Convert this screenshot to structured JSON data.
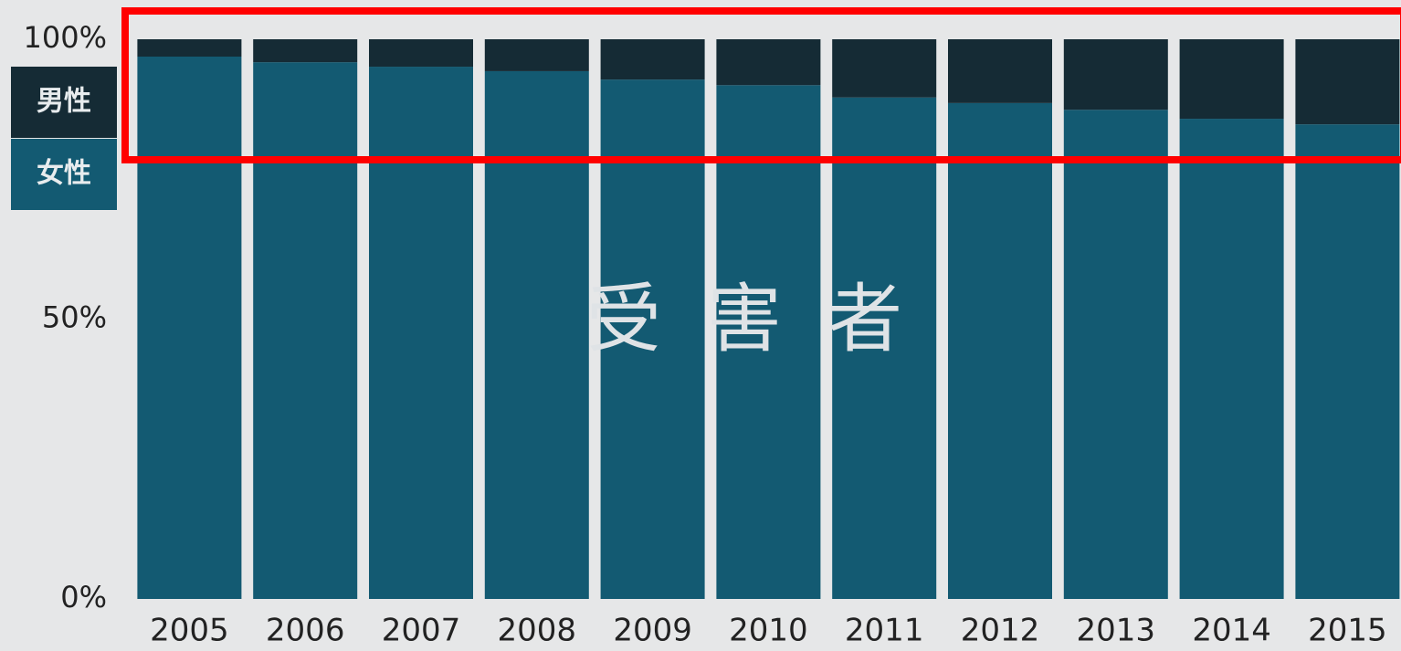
{
  "chart_data": {
    "type": "stacked_bar",
    "categories": [
      "2005",
      "2006",
      "2007",
      "2008",
      "2009",
      "2010",
      "2011",
      "2012",
      "2013",
      "2014",
      "2015"
    ],
    "series": [
      {
        "name": "女性",
        "color": "#135a72",
        "values": [
          96.9,
          95.9,
          95.1,
          94.3,
          92.8,
          91.8,
          89.6,
          88.6,
          87.4,
          85.8,
          84.8
        ]
      },
      {
        "name": "男性",
        "color": "#152b35",
        "values": [
          3.1,
          4.1,
          4.9,
          5.7,
          7.2,
          8.2,
          10.4,
          11.4,
          12.6,
          14.2,
          15.2
        ]
      }
    ],
    "ylim": [
      0,
      100
    ],
    "yticks": [
      {
        "value": 0,
        "label": "0%"
      },
      {
        "value": 50,
        "label": "50%"
      },
      {
        "value": 100,
        "label": "100%"
      }
    ],
    "annotation": "受害者"
  }
}
